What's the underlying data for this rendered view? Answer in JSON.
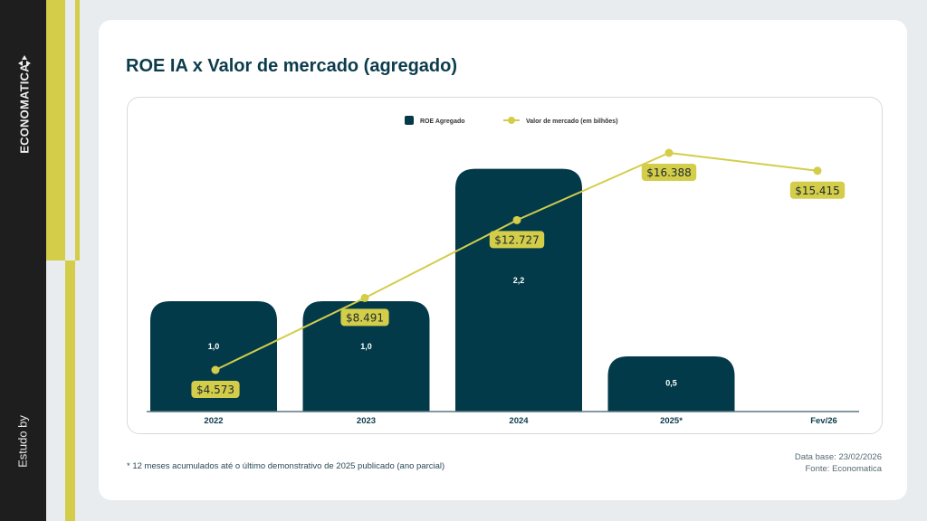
{
  "sidebar": {
    "brand": "ECONOMATICA",
    "study_label": "Estudo by"
  },
  "colors": {
    "bar": "#033a4a",
    "line": "#d3cd4a",
    "label_bg": "#d3cd4a",
    "axis": "#5a7680"
  },
  "footer": {
    "note": "* 12 meses acumulados até o último demonstrativo de 2025 publicado (ano parcial)",
    "database": "Data base: 23/02/2026",
    "source": "Fonte: Economatica"
  },
  "chart_data": {
    "type": "bar",
    "title": "ROE IA x Valor de mercado (agregado)",
    "categories": [
      "2022",
      "2023",
      "2024",
      "2025*",
      "Fev/26"
    ],
    "legend_position": "top-center",
    "grid": false,
    "series": [
      {
        "name": "ROE Agregado",
        "type": "bar",
        "values": [
          1.0,
          1.0,
          2.2,
          0.5,
          null
        ],
        "labels": [
          "1,0",
          "1,0",
          "2,2",
          "0,5",
          ""
        ]
      },
      {
        "name": "Valor de mercado (em bilhões)",
        "type": "line",
        "values": [
          4573,
          8491,
          12727,
          16388,
          15415
        ],
        "labels": [
          "$4.573",
          "$8.491",
          "$12.727",
          "$16.388",
          "$15.415"
        ]
      }
    ]
  }
}
